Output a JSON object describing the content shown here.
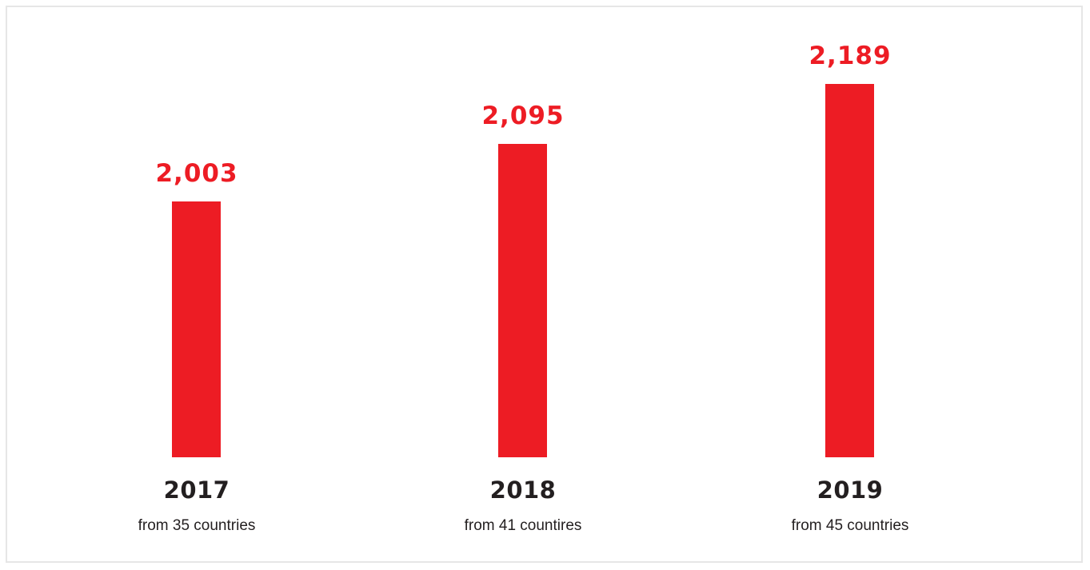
{
  "chart_data": {
    "type": "bar",
    "categories": [
      "2017",
      "2018",
      "2019"
    ],
    "values": [
      2003,
      2095,
      2189
    ],
    "value_labels": [
      "2,003",
      "2,095",
      "2,189"
    ],
    "sublabels": [
      "from 35 countries",
      "from 41 countires",
      "from 45 countries"
    ],
    "ylim": [
      0,
      2400
    ],
    "grid": false,
    "legend": "none"
  },
  "colors": {
    "bar": "#ed1c24",
    "value_label": "#ed1c24",
    "year_label": "#231f20",
    "frame_border": "#e6e6e6"
  }
}
